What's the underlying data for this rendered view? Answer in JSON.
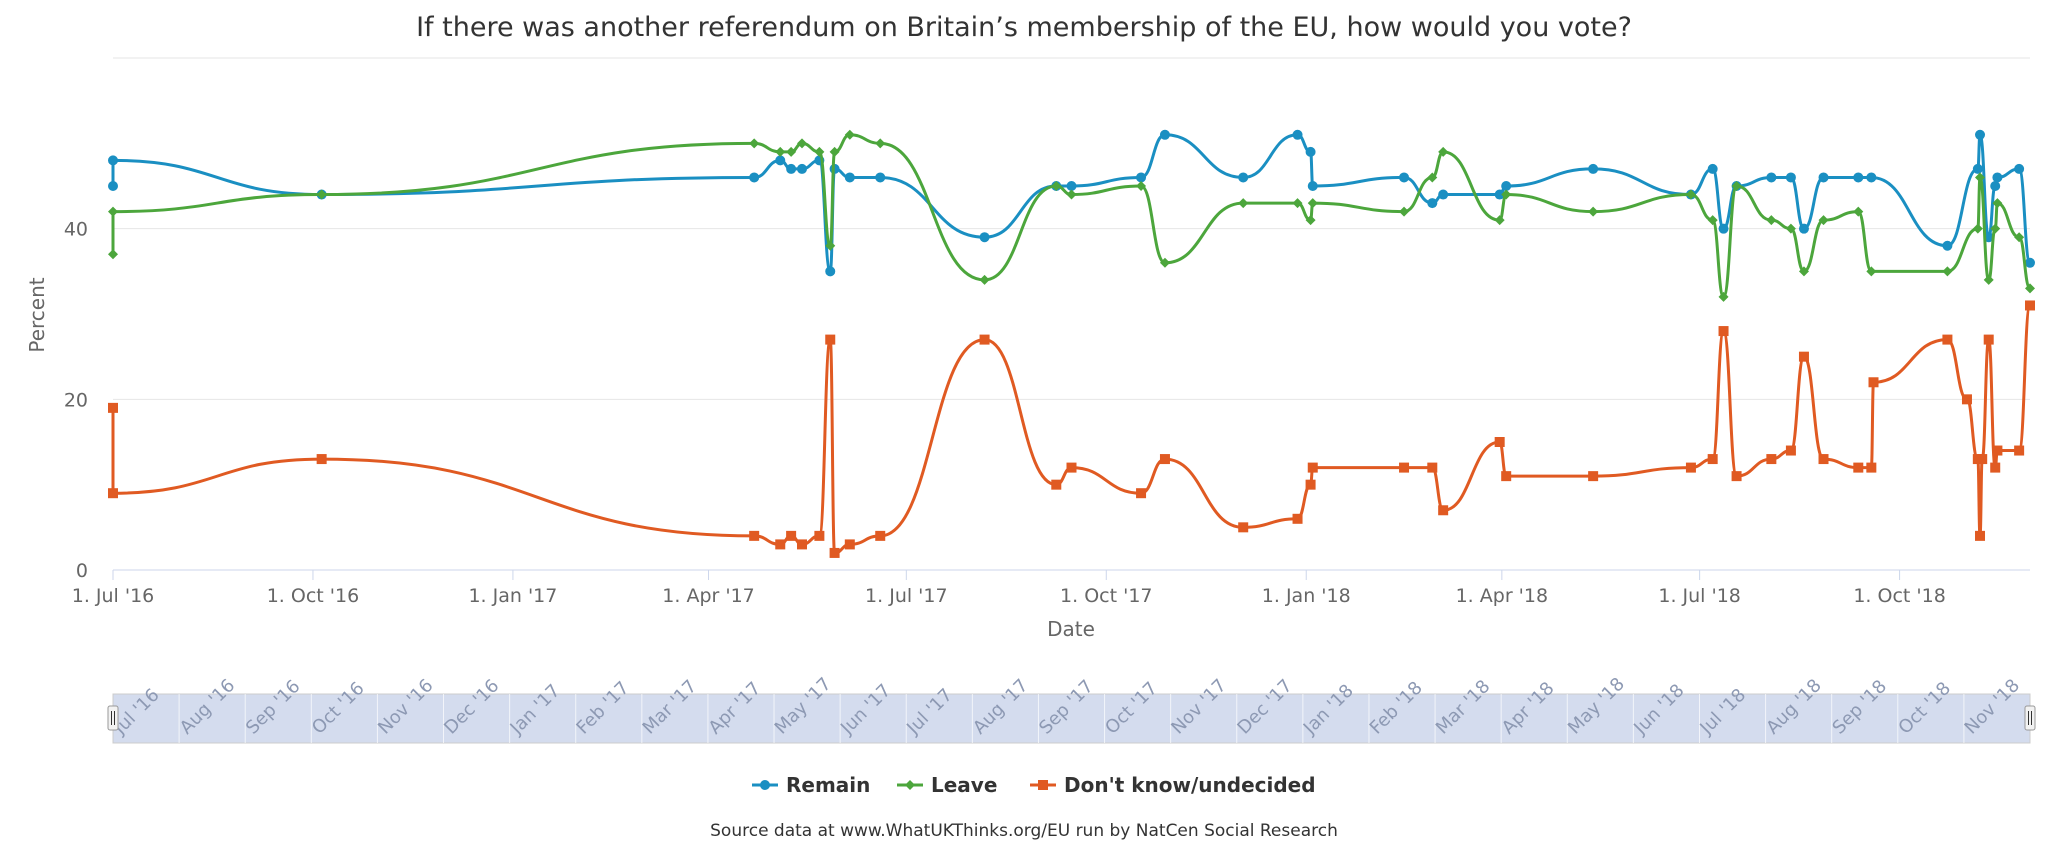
{
  "title": "If there was another referendum on Britain’s membership of the EU, how would you vote?",
  "credits": "Source data at www.WhatUKThinks.org/EU run by NatCen Social Research",
  "chart_data": {
    "type": "line",
    "title": "If there was another referendum on Britain’s membership of the EU, how would you vote?",
    "xlabel": "Date",
    "ylabel": "Percent",
    "x_axis_type": "date",
    "xlim": [
      "2016-07-01",
      "2018-11-30"
    ],
    "ylim": [
      0,
      60
    ],
    "y_ticks": [
      0,
      20,
      40
    ],
    "x_ticks": [
      {
        "date": "2016-07-01",
        "label": "1. Jul '16"
      },
      {
        "date": "2016-10-01",
        "label": "1. Oct '16"
      },
      {
        "date": "2017-01-01",
        "label": "1. Jan '17"
      },
      {
        "date": "2017-04-01",
        "label": "1. Apr '17"
      },
      {
        "date": "2017-07-01",
        "label": "1. Jul '17"
      },
      {
        "date": "2017-10-01",
        "label": "1. Oct '17"
      },
      {
        "date": "2018-01-01",
        "label": "1. Jan '18"
      },
      {
        "date": "2018-04-01",
        "label": "1. Apr '18"
      },
      {
        "date": "2018-07-01",
        "label": "1. Jul '18"
      },
      {
        "date": "2018-10-01",
        "label": "1. Oct '18"
      }
    ],
    "grid": "horizontal",
    "legend_position": "bottom-center",
    "series": [
      {
        "name": "Remain",
        "color": "#1a8fc2",
        "marker": "circle",
        "points": [
          [
            "2016-07-01",
            45
          ],
          [
            "2016-07-01",
            48
          ],
          [
            "2016-10-05",
            44
          ],
          [
            "2017-04-22",
            46
          ],
          [
            "2017-05-04",
            48
          ],
          [
            "2017-05-09",
            47
          ],
          [
            "2017-05-14",
            47
          ],
          [
            "2017-05-22",
            48
          ],
          [
            "2017-05-27",
            35
          ],
          [
            "2017-05-29",
            47
          ],
          [
            "2017-06-05",
            46
          ],
          [
            "2017-06-19",
            46
          ],
          [
            "2017-08-06",
            39
          ],
          [
            "2017-09-08",
            45
          ],
          [
            "2017-09-15",
            45
          ],
          [
            "2017-10-17",
            46
          ],
          [
            "2017-10-28",
            51
          ],
          [
            "2017-12-03",
            46
          ],
          [
            "2017-12-28",
            51
          ],
          [
            "2018-01-03",
            49
          ],
          [
            "2018-01-04",
            45
          ],
          [
            "2018-02-15",
            46
          ],
          [
            "2018-02-28",
            43
          ],
          [
            "2018-03-05",
            44
          ],
          [
            "2018-03-31",
            44
          ],
          [
            "2018-04-03",
            45
          ],
          [
            "2018-05-13",
            47
          ],
          [
            "2018-06-27",
            44
          ],
          [
            "2018-07-07",
            47
          ],
          [
            "2018-07-12",
            40
          ],
          [
            "2018-07-18",
            45
          ],
          [
            "2018-08-03",
            46
          ],
          [
            "2018-08-12",
            46
          ],
          [
            "2018-08-18",
            40
          ],
          [
            "2018-08-27",
            46
          ],
          [
            "2018-09-12",
            46
          ],
          [
            "2018-09-18",
            46
          ],
          [
            "2018-10-23",
            38
          ],
          [
            "2018-11-06",
            47
          ],
          [
            "2018-11-07",
            51
          ],
          [
            "2018-11-11",
            39
          ],
          [
            "2018-11-14",
            45
          ],
          [
            "2018-11-15",
            46
          ],
          [
            "2018-11-25",
            47
          ],
          [
            "2018-11-30",
            36
          ]
        ]
      },
      {
        "name": "Leave",
        "color": "#4ca63c",
        "marker": "diamond",
        "points": [
          [
            "2016-07-01",
            37
          ],
          [
            "2016-07-01",
            42
          ],
          [
            "2016-10-05",
            44
          ],
          [
            "2017-04-22",
            50
          ],
          [
            "2017-05-04",
            49
          ],
          [
            "2017-05-09",
            49
          ],
          [
            "2017-05-14",
            50
          ],
          [
            "2017-05-22",
            49
          ],
          [
            "2017-05-27",
            38
          ],
          [
            "2017-05-29",
            49
          ],
          [
            "2017-06-05",
            51
          ],
          [
            "2017-06-19",
            50
          ],
          [
            "2017-08-06",
            34
          ],
          [
            "2017-09-08",
            45
          ],
          [
            "2017-09-15",
            44
          ],
          [
            "2017-10-17",
            45
          ],
          [
            "2017-10-28",
            36
          ],
          [
            "2017-12-03",
            43
          ],
          [
            "2017-12-28",
            43
          ],
          [
            "2018-01-03",
            41
          ],
          [
            "2018-01-04",
            43
          ],
          [
            "2018-02-15",
            42
          ],
          [
            "2018-02-28",
            46
          ],
          [
            "2018-03-05",
            49
          ],
          [
            "2018-03-31",
            41
          ],
          [
            "2018-04-03",
            44
          ],
          [
            "2018-05-13",
            42
          ],
          [
            "2018-06-27",
            44
          ],
          [
            "2018-07-07",
            41
          ],
          [
            "2018-07-12",
            32
          ],
          [
            "2018-07-18",
            45
          ],
          [
            "2018-08-03",
            41
          ],
          [
            "2018-08-12",
            40
          ],
          [
            "2018-08-18",
            35
          ],
          [
            "2018-08-27",
            41
          ],
          [
            "2018-09-12",
            42
          ],
          [
            "2018-09-18",
            35
          ],
          [
            "2018-10-23",
            35
          ],
          [
            "2018-11-06",
            40
          ],
          [
            "2018-11-07",
            46
          ],
          [
            "2018-11-11",
            34
          ],
          [
            "2018-11-14",
            40
          ],
          [
            "2018-11-15",
            43
          ],
          [
            "2018-11-25",
            39
          ],
          [
            "2018-11-30",
            33
          ]
        ]
      },
      {
        "name": "Don't know/undecided",
        "color": "#e05a22",
        "marker": "square",
        "points": [
          [
            "2016-07-01",
            19
          ],
          [
            "2016-07-01",
            9
          ],
          [
            "2016-10-05",
            13
          ],
          [
            "2017-04-22",
            4
          ],
          [
            "2017-05-04",
            3
          ],
          [
            "2017-05-09",
            4
          ],
          [
            "2017-05-14",
            3
          ],
          [
            "2017-05-22",
            4
          ],
          [
            "2017-05-27",
            27
          ],
          [
            "2017-05-29",
            2
          ],
          [
            "2017-06-05",
            3
          ],
          [
            "2017-06-19",
            4
          ],
          [
            "2017-08-06",
            27
          ],
          [
            "2017-09-08",
            10
          ],
          [
            "2017-09-15",
            12
          ],
          [
            "2017-10-17",
            9
          ],
          [
            "2017-10-28",
            13
          ],
          [
            "2017-12-03",
            5
          ],
          [
            "2017-12-28",
            6
          ],
          [
            "2018-01-03",
            10
          ],
          [
            "2018-01-04",
            12
          ],
          [
            "2018-02-15",
            12
          ],
          [
            "2018-02-28",
            12
          ],
          [
            "2018-03-05",
            7
          ],
          [
            "2018-03-31",
            15
          ],
          [
            "2018-04-03",
            11
          ],
          [
            "2018-05-13",
            11
          ],
          [
            "2018-06-27",
            12
          ],
          [
            "2018-07-07",
            13
          ],
          [
            "2018-07-12",
            28
          ],
          [
            "2018-07-18",
            11
          ],
          [
            "2018-08-03",
            13
          ],
          [
            "2018-08-12",
            14
          ],
          [
            "2018-08-18",
            25
          ],
          [
            "2018-08-27",
            13
          ],
          [
            "2018-09-12",
            12
          ],
          [
            "2018-09-18",
            12
          ],
          [
            "2018-09-19",
            22
          ],
          [
            "2018-10-23",
            27
          ],
          [
            "2018-11-01",
            20
          ],
          [
            "2018-11-06",
            13
          ],
          [
            "2018-11-07",
            4
          ],
          [
            "2018-11-08",
            13
          ],
          [
            "2018-11-11",
            27
          ],
          [
            "2018-11-14",
            12
          ],
          [
            "2018-11-15",
            14
          ],
          [
            "2018-11-25",
            14
          ],
          [
            "2018-11-30",
            31
          ]
        ]
      }
    ]
  },
  "navigator": {
    "labels": [
      "Jul '16",
      "Aug '16",
      "Sep '16",
      "Oct '16",
      "Nov '16",
      "Dec '16",
      "Jan '17",
      "Feb '17",
      "Mar '17",
      "Apr '17",
      "May '17",
      "Jun '17",
      "Jul '17",
      "Aug '17",
      "Sep '17",
      "Oct '17",
      "Nov '17",
      "Dec '17",
      "Jan '18",
      "Feb '18",
      "Mar '18",
      "Apr '18",
      "May '18",
      "Jun '18",
      "Jul '18",
      "Aug '18",
      "Sep '18",
      "Oct '18",
      "Nov '18"
    ]
  }
}
